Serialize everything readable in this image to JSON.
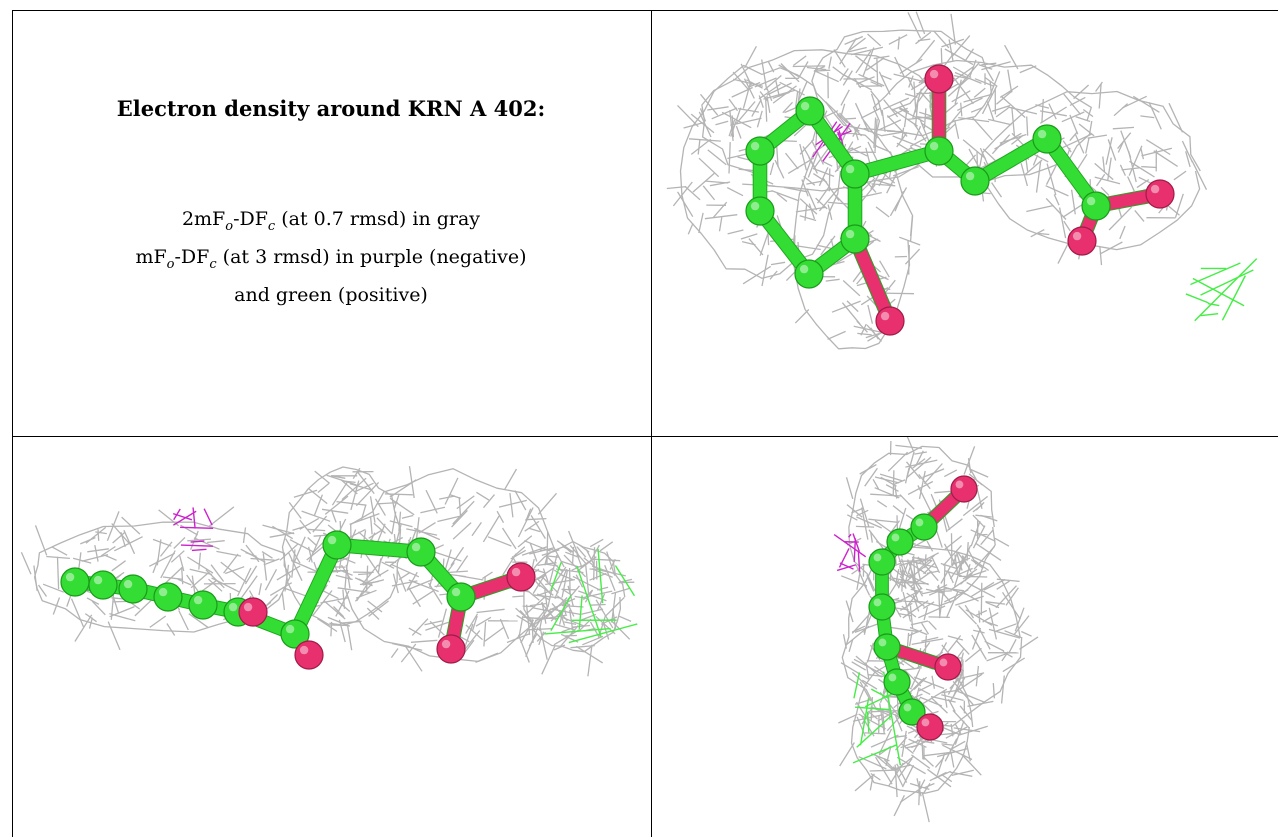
{
  "caption": {
    "title": "Electron density around KRN A 402:",
    "line1": "2mFo-DFc (at 0.7 rmsd) in gray",
    "line2": "mFo-DFc (at 3 rmsd) in purple (negative)",
    "line3": "and green (positive)"
  },
  "colors": {
    "map_2fofc": "#b4b4b4",
    "map_fofc_negative": "#cc22cc",
    "map_fofc_positive": "#44ee44",
    "carbon": "#33dd33",
    "oxygen": "#e8306f",
    "grid": "#000000"
  },
  "panels": [
    {
      "name": "panel-caption"
    },
    {
      "name": "panel-view-top"
    },
    {
      "name": "panel-view-side"
    },
    {
      "name": "panel-view-end"
    }
  ]
}
